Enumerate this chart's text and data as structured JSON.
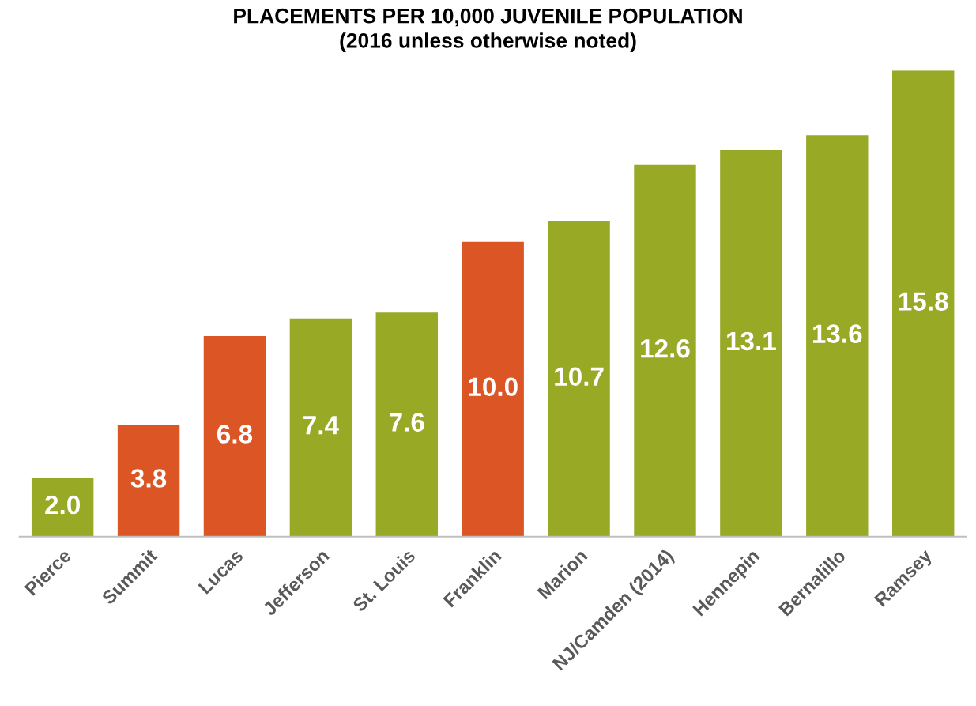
{
  "chart_data": {
    "type": "bar",
    "title": "PLACEMENTS PER 10,000 JUVENILE POPULATION",
    "subtitle": "(2016 unless otherwise noted)",
    "categories": [
      "Pierce",
      "Summit",
      "Lucas",
      "Jefferson",
      "St. Louis",
      "Franklin",
      "Marion",
      "NJ/Camden (2014)",
      "Hennepin",
      "Bernalillo",
      "Ramsey"
    ],
    "values": [
      2.0,
      3.8,
      6.8,
      7.4,
      7.6,
      10.0,
      10.7,
      12.6,
      13.1,
      13.6,
      15.8
    ],
    "colors": [
      "#97a925",
      "#dc5625",
      "#dc5625",
      "#97a925",
      "#97a925",
      "#dc5625",
      "#97a925",
      "#97a925",
      "#97a925",
      "#97a925",
      "#97a925"
    ],
    "value_labels": [
      "2.0",
      "3.8",
      "6.8",
      "7.4",
      "7.6",
      "10.0",
      "10.7",
      "12.6",
      "13.1",
      "13.6",
      "15.8"
    ],
    "tick_labels": "x",
    "grid": false,
    "legend": false
  }
}
